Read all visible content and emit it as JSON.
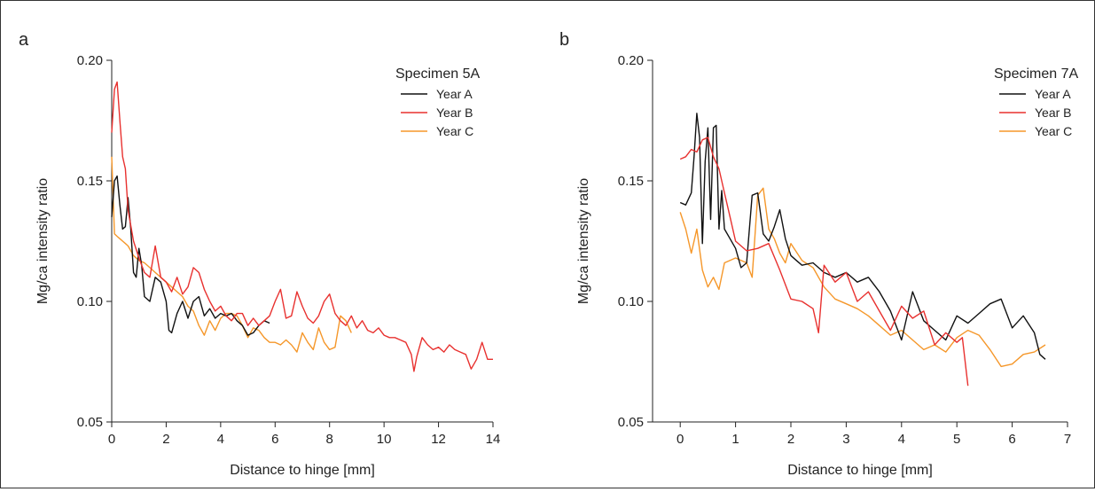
{
  "chart_data": [
    {
      "type": "line",
      "panel_label": "a",
      "xlabel": "Distance to hinge [mm]",
      "ylabel": "Mg/ca intensity ratio",
      "xlim": [
        0,
        14
      ],
      "ylim": [
        0.05,
        0.2
      ],
      "xticks": [
        0,
        2,
        4,
        6,
        8,
        10,
        12,
        14
      ],
      "yticks": [
        0.05,
        0.1,
        0.15,
        0.2
      ],
      "ytick_labels": [
        "0.05",
        "0.10",
        "0.15",
        "0.20"
      ],
      "grid": false,
      "legend": {
        "title": "Specimen 5A",
        "placement": "top-right"
      },
      "series": [
        {
          "name": "Year A",
          "color": "#111111",
          "x": [
            0,
            0.1,
            0.2,
            0.3,
            0.4,
            0.5,
            0.6,
            0.7,
            0.8,
            0.9,
            1.0,
            1.1,
            1.2,
            1.4,
            1.6,
            1.8,
            2.0,
            2.1,
            2.2,
            2.4,
            2.6,
            2.8,
            3.0,
            3.2,
            3.4,
            3.6,
            3.8,
            4.0,
            4.2,
            4.4,
            4.6,
            4.8,
            5.0,
            5.2,
            5.4,
            5.6,
            5.8
          ],
          "y": [
            0.135,
            0.15,
            0.152,
            0.14,
            0.13,
            0.131,
            0.143,
            0.13,
            0.112,
            0.11,
            0.122,
            0.115,
            0.102,
            0.1,
            0.11,
            0.108,
            0.1,
            0.088,
            0.087,
            0.095,
            0.1,
            0.093,
            0.1,
            0.102,
            0.094,
            0.097,
            0.093,
            0.095,
            0.094,
            0.095,
            0.092,
            0.09,
            0.086,
            0.087,
            0.09,
            0.092,
            0.091
          ]
        },
        {
          "name": "Year B",
          "color": "#e8312f",
          "x": [
            0,
            0.1,
            0.2,
            0.3,
            0.4,
            0.5,
            0.6,
            0.8,
            1.0,
            1.2,
            1.4,
            1.6,
            1.8,
            2.0,
            2.2,
            2.4,
            2.6,
            2.8,
            3.0,
            3.2,
            3.4,
            3.6,
            3.8,
            4.0,
            4.2,
            4.4,
            4.6,
            4.8,
            5.0,
            5.2,
            5.4,
            5.6,
            5.8,
            6.0,
            6.2,
            6.4,
            6.6,
            6.8,
            7.0,
            7.2,
            7.4,
            7.6,
            7.8,
            8.0,
            8.2,
            8.4,
            8.6,
            8.8,
            9.0,
            9.2,
            9.4,
            9.6,
            9.8,
            10.0,
            10.2,
            10.4,
            10.6,
            10.8,
            11.0,
            11.1,
            11.2,
            11.4,
            11.6,
            11.8,
            12.0,
            12.2,
            12.4,
            12.6,
            12.8,
            13.0,
            13.2,
            13.4,
            13.6,
            13.8,
            14.0
          ],
          "y": [
            0.17,
            0.188,
            0.191,
            0.175,
            0.16,
            0.155,
            0.138,
            0.125,
            0.118,
            0.112,
            0.11,
            0.123,
            0.11,
            0.108,
            0.104,
            0.11,
            0.103,
            0.106,
            0.114,
            0.112,
            0.105,
            0.1,
            0.096,
            0.098,
            0.094,
            0.092,
            0.095,
            0.095,
            0.09,
            0.093,
            0.09,
            0.092,
            0.094,
            0.1,
            0.105,
            0.093,
            0.094,
            0.104,
            0.098,
            0.093,
            0.091,
            0.094,
            0.1,
            0.103,
            0.095,
            0.092,
            0.09,
            0.094,
            0.089,
            0.092,
            0.088,
            0.087,
            0.089,
            0.086,
            0.085,
            0.085,
            0.084,
            0.083,
            0.078,
            0.071,
            0.077,
            0.085,
            0.082,
            0.08,
            0.081,
            0.079,
            0.082,
            0.08,
            0.079,
            0.078,
            0.072,
            0.076,
            0.083,
            0.076,
            0.076
          ]
        },
        {
          "name": "Year C",
          "color": "#f5972a",
          "x": [
            0,
            0.1,
            0.2,
            0.3,
            0.4,
            0.5,
            0.6,
            0.8,
            1.0,
            1.2,
            1.4,
            1.6,
            1.8,
            2.0,
            2.2,
            2.4,
            2.6,
            2.8,
            3.0,
            3.2,
            3.4,
            3.6,
            3.8,
            4.0,
            4.2,
            4.4,
            4.6,
            4.8,
            5.0,
            5.2,
            5.4,
            5.6,
            5.8,
            6.0,
            6.2,
            6.4,
            6.6,
            6.8,
            7.0,
            7.2,
            7.4,
            7.6,
            7.8,
            8.0,
            8.2,
            8.4,
            8.6,
            8.8
          ],
          "y": [
            0.16,
            0.128,
            0.127,
            0.126,
            0.125,
            0.124,
            0.123,
            0.119,
            0.117,
            0.116,
            0.114,
            0.112,
            0.11,
            0.108,
            0.106,
            0.104,
            0.102,
            0.098,
            0.096,
            0.09,
            0.086,
            0.092,
            0.088,
            0.093,
            0.095,
            0.095,
            0.094,
            0.09,
            0.085,
            0.089,
            0.088,
            0.085,
            0.083,
            0.083,
            0.082,
            0.084,
            0.082,
            0.079,
            0.087,
            0.083,
            0.08,
            0.089,
            0.083,
            0.08,
            0.081,
            0.094,
            0.092,
            0.087
          ]
        }
      ]
    },
    {
      "type": "line",
      "panel_label": "b",
      "xlabel": "Distance to hinge [mm]",
      "ylabel": "Mg/ca intensity ratio",
      "xlim": [
        -0.5,
        7
      ],
      "ylim": [
        0.05,
        0.2
      ],
      "xticks": [
        0,
        1,
        2,
        3,
        4,
        5,
        6,
        7
      ],
      "yticks": [
        0.05,
        0.1,
        0.15,
        0.2
      ],
      "ytick_labels": [
        "0.05",
        "0.10",
        "0.15",
        "0.20"
      ],
      "grid": false,
      "legend": {
        "title": "Specimen 7A",
        "placement": "top-right"
      },
      "series": [
        {
          "name": "Year A",
          "color": "#111111",
          "x": [
            0,
            0.1,
            0.2,
            0.25,
            0.3,
            0.35,
            0.4,
            0.45,
            0.5,
            0.55,
            0.6,
            0.65,
            0.7,
            0.75,
            0.8,
            0.9,
            1.0,
            1.1,
            1.2,
            1.3,
            1.4,
            1.5,
            1.6,
            1.7,
            1.8,
            1.9,
            2.0,
            2.1,
            2.2,
            2.4,
            2.6,
            2.8,
            3.0,
            3.2,
            3.4,
            3.6,
            3.8,
            4.0,
            4.2,
            4.4,
            4.6,
            4.8,
            5.0,
            5.2,
            5.4,
            5.6,
            5.8,
            6.0,
            6.2,
            6.4,
            6.5,
            6.6
          ],
          "y": [
            0.141,
            0.14,
            0.145,
            0.16,
            0.178,
            0.168,
            0.124,
            0.158,
            0.172,
            0.134,
            0.172,
            0.173,
            0.13,
            0.146,
            0.13,
            0.126,
            0.122,
            0.114,
            0.116,
            0.144,
            0.145,
            0.128,
            0.125,
            0.131,
            0.138,
            0.126,
            0.119,
            0.117,
            0.115,
            0.116,
            0.112,
            0.11,
            0.112,
            0.108,
            0.11,
            0.104,
            0.096,
            0.084,
            0.104,
            0.092,
            0.088,
            0.084,
            0.094,
            0.091,
            0.095,
            0.099,
            0.101,
            0.089,
            0.094,
            0.087,
            0.078,
            0.076
          ]
        },
        {
          "name": "Year B",
          "color": "#e8312f",
          "x": [
            0,
            0.1,
            0.2,
            0.3,
            0.4,
            0.5,
            0.6,
            0.7,
            0.8,
            0.9,
            1.0,
            1.2,
            1.4,
            1.6,
            1.8,
            2.0,
            2.2,
            2.4,
            2.5,
            2.6,
            2.8,
            3.0,
            3.2,
            3.4,
            3.6,
            3.8,
            4.0,
            4.2,
            4.4,
            4.6,
            4.8,
            5.0,
            5.1,
            5.2
          ],
          "y": [
            0.159,
            0.16,
            0.163,
            0.162,
            0.167,
            0.168,
            0.16,
            0.155,
            0.145,
            0.135,
            0.125,
            0.121,
            0.122,
            0.124,
            0.113,
            0.101,
            0.1,
            0.097,
            0.087,
            0.115,
            0.108,
            0.112,
            0.1,
            0.104,
            0.096,
            0.088,
            0.098,
            0.093,
            0.096,
            0.082,
            0.087,
            0.083,
            0.085,
            0.065
          ]
        },
        {
          "name": "Year C",
          "color": "#f5972a",
          "x": [
            0,
            0.1,
            0.2,
            0.3,
            0.4,
            0.5,
            0.6,
            0.7,
            0.8,
            1.0,
            1.2,
            1.3,
            1.4,
            1.5,
            1.6,
            1.7,
            1.8,
            1.9,
            2.0,
            2.2,
            2.4,
            2.6,
            2.8,
            3.0,
            3.2,
            3.4,
            3.6,
            3.8,
            4.0,
            4.2,
            4.4,
            4.6,
            4.8,
            5.0,
            5.2,
            5.4,
            5.6,
            5.8,
            6.0,
            6.2,
            6.4,
            6.6
          ],
          "y": [
            0.137,
            0.13,
            0.12,
            0.13,
            0.113,
            0.106,
            0.11,
            0.105,
            0.116,
            0.118,
            0.116,
            0.11,
            0.144,
            0.147,
            0.13,
            0.126,
            0.12,
            0.116,
            0.124,
            0.117,
            0.114,
            0.106,
            0.101,
            0.099,
            0.097,
            0.094,
            0.09,
            0.086,
            0.088,
            0.084,
            0.08,
            0.082,
            0.079,
            0.085,
            0.088,
            0.086,
            0.08,
            0.073,
            0.074,
            0.078,
            0.079,
            0.082
          ]
        }
      ]
    }
  ]
}
